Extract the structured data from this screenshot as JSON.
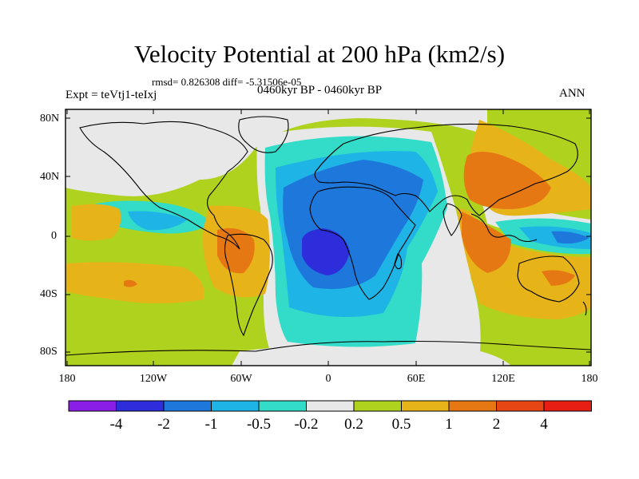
{
  "title": "Velocity Potential at 200 hPa (km2/s)",
  "stats": "rmsd= 0.826308 diff= -5.31506e-05",
  "expt": "Expt = teVtj1-teIxj",
  "period": "0460kyr BP - 0460kyr BP",
  "season": "ANN",
  "x_ticks": [
    "180",
    "120W",
    "60W",
    "0",
    "60E",
    "120E",
    "180"
  ],
  "y_ticks": [
    "80N",
    "40N",
    "0",
    "40S",
    "80S"
  ],
  "colorbar": {
    "labels": [
      "-4",
      "-2",
      "-1",
      "-0.5",
      "-0.2",
      "0.2",
      "0.5",
      "1",
      "2",
      "4"
    ],
    "colors": [
      "#8a1ee6",
      "#2d2ddc",
      "#1e78dc",
      "#1eb4e6",
      "#32dcc8",
      "#e8e8e8",
      "#afd21e",
      "#e6b419",
      "#e67814",
      "#e64614",
      "#e61e14"
    ]
  },
  "palette": {
    "land_outline": "#000000",
    "frame": "#000000"
  }
}
